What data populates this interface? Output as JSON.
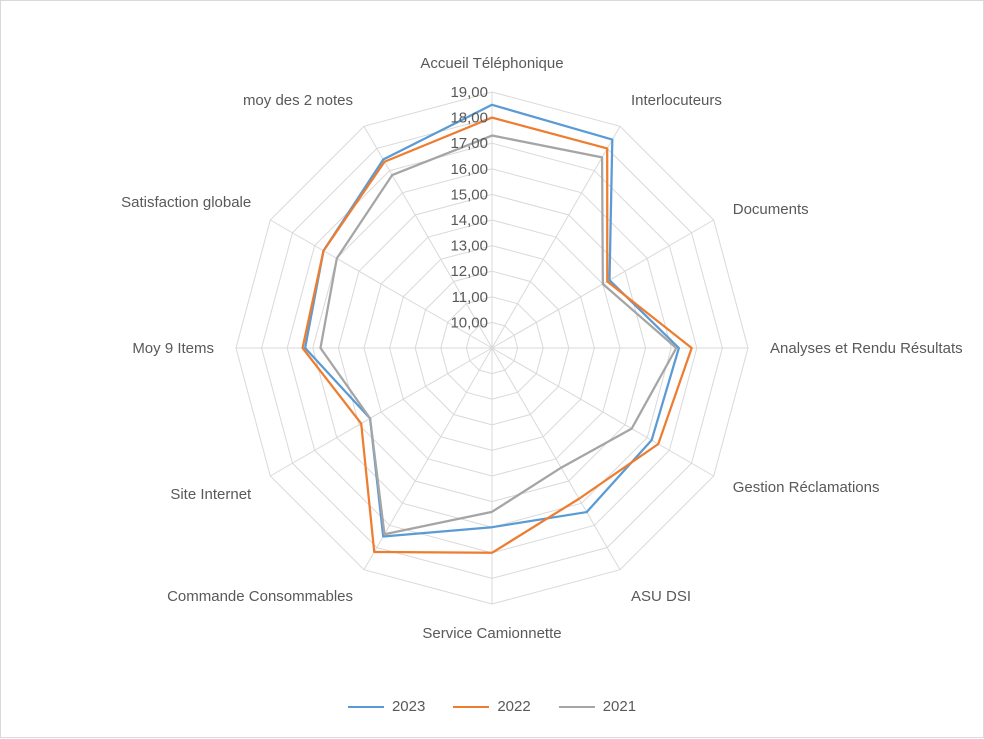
{
  "chart_data": {
    "type": "radar",
    "categories": [
      "Accueil Téléphonique",
      "Interlocuteurs",
      "Documents",
      "Analyses et Rendu Résultats",
      "Gestion Réclamations",
      "ASU DSI",
      "Service Camionnette",
      "Commande Consommables",
      "Site Internet",
      "Moy 9 Items",
      "Satisfaction globale",
      "moy des 2 notes"
    ],
    "r_ticks": [
      "10,00",
      "11,00",
      "12,00",
      "13,00",
      "14,00",
      "15,00",
      "16,00",
      "17,00",
      "18,00",
      "19,00"
    ],
    "rlim": [
      9,
      19
    ],
    "series": [
      {
        "name": "2023",
        "color": "#5b9bd5",
        "values": [
          18.5,
          18.4,
          14.3,
          16.3,
          16.2,
          16.4,
          16.0,
          17.5,
          14.5,
          16.3,
          16.6,
          17.5
        ]
      },
      {
        "name": "2022",
        "color": "#ed7d31",
        "values": [
          18.0,
          18.0,
          14.2,
          16.8,
          16.5,
          15.8,
          17.0,
          18.2,
          14.9,
          16.4,
          16.6,
          17.4
        ]
      },
      {
        "name": "2021",
        "color": "#a5a5a5",
        "values": [
          17.3,
          17.6,
          14.0,
          16.2,
          15.3,
          14.4,
          15.4,
          17.4,
          14.5,
          15.7,
          16.0,
          16.8
        ]
      }
    ],
    "grid": true,
    "legend_position": "bottom"
  }
}
